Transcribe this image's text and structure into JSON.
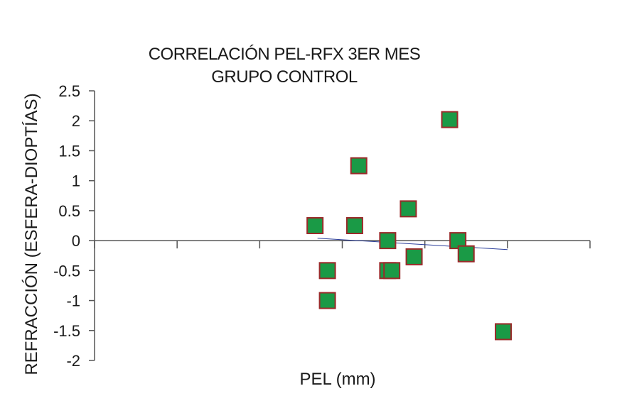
{
  "chart_data": {
    "type": "scatter",
    "title_lines": [
      "CORRELACIÓN PEL-RFX 3ER MES",
      "GRUPO CONTROL"
    ],
    "xlabel": "PEL (mm)",
    "ylabel": "REFRACCIÓN (ESFERA-DIOPTÍAS)",
    "ylim": [
      -2,
      2.5
    ],
    "yticks": [
      2.5,
      2,
      1.5,
      1,
      0.5,
      0,
      -0.5,
      -1,
      -1.5,
      -2
    ],
    "ytick_labels": [
      "2.5",
      "2",
      "1.5",
      "1",
      "0.5",
      "0",
      "-0.5",
      "-1",
      "-1.5",
      "-2"
    ],
    "xlim": [
      0,
      6
    ],
    "xticks": [
      0,
      1,
      2,
      3,
      4,
      5,
      6
    ],
    "x_tick_labels_shown": false,
    "grid": false,
    "legend": "none",
    "series": [
      {
        "values": [
          {
            "x": 2.67,
            "y": 0.25
          },
          {
            "x": 2.82,
            "y": -0.5
          },
          {
            "x": 2.82,
            "y": -1.0
          },
          {
            "x": 3.15,
            "y": 0.25
          },
          {
            "x": 3.2,
            "y": 1.25
          },
          {
            "x": 3.55,
            "y": 0.0
          },
          {
            "x": 3.55,
            "y": -0.5
          },
          {
            "x": 3.6,
            "y": -0.5
          },
          {
            "x": 3.8,
            "y": 0.53
          },
          {
            "x": 3.87,
            "y": -0.27
          },
          {
            "x": 4.3,
            "y": 2.02
          },
          {
            "x": 4.4,
            "y": 0.0
          },
          {
            "x": 4.5,
            "y": -0.22
          },
          {
            "x": 4.95,
            "y": -1.52
          }
        ]
      }
    ],
    "trendline": {
      "x": [
        2.7,
        5.0
      ],
      "y": [
        0.04,
        -0.15
      ]
    },
    "colors": {
      "marker_fill": "#1a9a46",
      "marker_edge": "#9a2a2a",
      "trendline": "#2a3d9a",
      "axis": "#555555"
    }
  }
}
